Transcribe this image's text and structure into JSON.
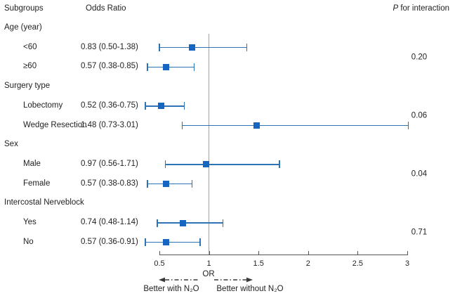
{
  "header": {
    "subgroups": "Subgroups",
    "odds_ratio": "Odds Ratio",
    "p_italic": "P",
    "p_rest": " for interaction"
  },
  "axis": {
    "label": "OR",
    "ticks": [
      "0.5",
      "1",
      "1.5",
      "2",
      "2.5",
      "3"
    ],
    "tick_values": [
      0.5,
      1,
      1.5,
      2,
      2.5,
      3
    ]
  },
  "footer": {
    "left_label": "Better with N₂O",
    "right_label": "Better without N₂O"
  },
  "colors": {
    "marker": "#1665c0",
    "ci_line": "#2e74b5",
    "reference_line": "#a3a3a3",
    "axis": "#555555",
    "text": "#1f1f1f",
    "arrow": "#3a3a3a"
  },
  "chart_data": {
    "type": "forest",
    "title": "",
    "xlabel": "OR",
    "xlim": [
      0.5,
      3
    ],
    "x_ticks": [
      0.5,
      1,
      1.5,
      2,
      2.5,
      3
    ],
    "reference_line": 1,
    "direction_labels": {
      "left": "Better with N₂O",
      "right": "Better without N₂O"
    },
    "groups": [
      {
        "label": "Age (year)",
        "p_interaction": "0.20",
        "items": [
          {
            "label": "<60",
            "or_text": "0.83 (0.50-1.38)",
            "est": 0.83,
            "lo": 0.5,
            "hi": 1.38
          },
          {
            "label": "≥60",
            "or_text": "0.57 (0.38-0.85)",
            "est": 0.57,
            "lo": 0.38,
            "hi": 0.85
          }
        ]
      },
      {
        "label": "Surgery type",
        "p_interaction": "0.06",
        "items": [
          {
            "label": "Lobectomy",
            "or_text": "0.52 (0.36-0.75)",
            "est": 0.52,
            "lo": 0.36,
            "hi": 0.75
          },
          {
            "label": "Wedge Resection",
            "or_text": "1.48 (0.73-3.01)",
            "est": 1.48,
            "lo": 0.73,
            "hi": 3.01
          }
        ]
      },
      {
        "label": "Sex",
        "p_interaction": "0.04",
        "items": [
          {
            "label": "Male",
            "or_text": "0.97 (0.56-1.71)",
            "est": 0.97,
            "lo": 0.56,
            "hi": 1.71
          },
          {
            "label": "Female",
            "or_text": "0.57 (0.38-0.83)",
            "est": 0.57,
            "lo": 0.38,
            "hi": 0.83
          }
        ]
      },
      {
        "label": "Intercostal Nerveblock",
        "p_interaction": "0.71",
        "items": [
          {
            "label": "Yes",
            "or_text": "0.74 (0.48-1.14)",
            "est": 0.74,
            "lo": 0.48,
            "hi": 1.14
          },
          {
            "label": "No",
            "or_text": "0.57 (0.36-0.91)",
            "est": 0.57,
            "lo": 0.36,
            "hi": 0.91
          }
        ]
      }
    ]
  }
}
